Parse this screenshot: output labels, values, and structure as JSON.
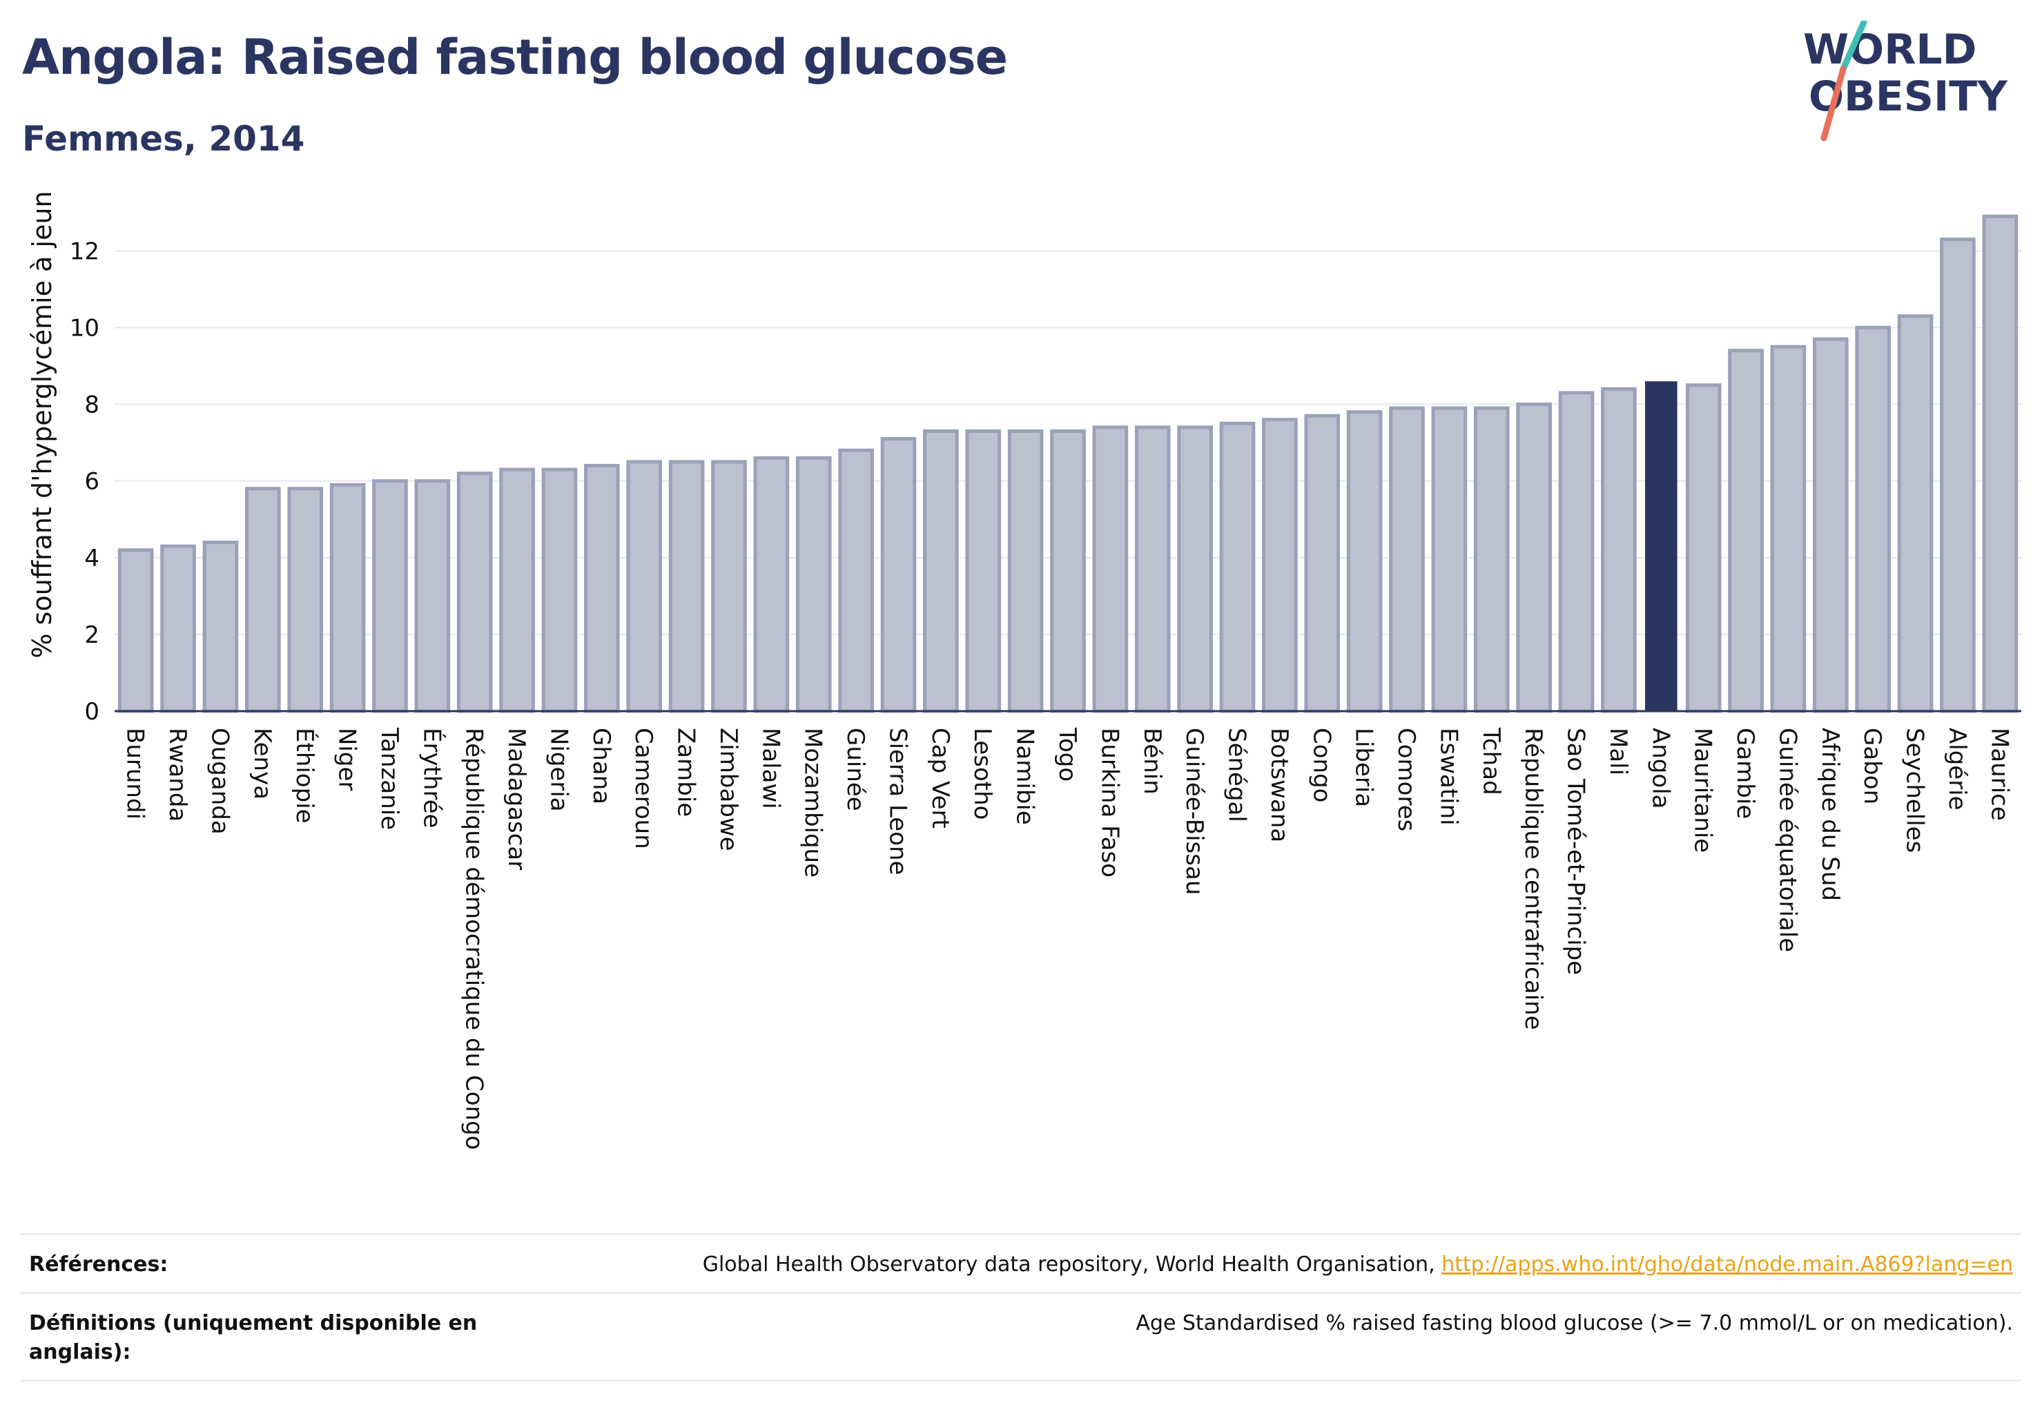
{
  "header": {
    "title": "Angola: Raised fasting blood glucose",
    "subtitle": "Femmes, 2014"
  },
  "logo": {
    "line1": "WORLD",
    "line2": "OBESITY",
    "colors": [
      "#2b3562",
      "#3fbfb6",
      "#e8705a"
    ]
  },
  "colors": {
    "bar": "#bcc1d0",
    "bar_border": "#9aa1b8",
    "highlight": "#2b3562",
    "grid": "#e6e8ef"
  },
  "chart_data": {
    "type": "bar",
    "ylabel": "% souffrant d'hyperglycémie à jeun",
    "ylim": [
      0,
      13.5
    ],
    "yticks": [
      0,
      2,
      4,
      6,
      8,
      10,
      12
    ],
    "grid": true,
    "highlight": "Angola",
    "categories": [
      "Burundi",
      "Rwanda",
      "Ouganda",
      "Kenya",
      "Éthiopie",
      "Niger",
      "Tanzanie",
      "Érythrée",
      "République démocratique du Congo",
      "Madagascar",
      "Nigeria",
      "Ghana",
      "Cameroun",
      "Zambie",
      "Zimbabwe",
      "Malawi",
      "Mozambique",
      "Guinée",
      "Sierra Leone",
      "Cap Vert",
      "Lesotho",
      "Namibie",
      "Togo",
      "Burkina Faso",
      "Bénin",
      "Guinée-Bissau",
      "Sénégal",
      "Botswana",
      "Congo",
      "Liberia",
      "Comores",
      "Eswatini",
      "Tchad",
      "République centrafricaine",
      "Sao Tomé-et-Principe",
      "Mali",
      "Angola",
      "Mauritanie",
      "Gambie",
      "Guinée équatoriale",
      "Afrique du Sud",
      "Gabon",
      "Seychelles",
      "Algérie",
      "Maurice"
    ],
    "values": [
      4.2,
      4.3,
      4.4,
      5.8,
      5.8,
      5.9,
      6.0,
      6.0,
      6.2,
      6.3,
      6.3,
      6.4,
      6.5,
      6.5,
      6.5,
      6.6,
      6.6,
      6.8,
      7.1,
      7.3,
      7.3,
      7.3,
      7.3,
      7.4,
      7.4,
      7.4,
      7.5,
      7.6,
      7.7,
      7.8,
      7.9,
      7.9,
      7.9,
      8.0,
      8.3,
      8.4,
      8.6,
      8.5,
      9.4,
      9.5,
      9.7,
      10.0,
      10.3,
      12.3,
      12.9
    ]
  },
  "footer": {
    "references_label": "Références:",
    "references_text": "Global Health Observatory data repository, World Health Organisation, ",
    "references_link": "http://apps.who.int/gho/data/node.main.A869?lang=en",
    "definitions_label": "Définitions (uniquement disponible en anglais):",
    "definitions_text": "Age Standardised % raised fasting blood glucose (>= 7.0 mmol/L or on medication)."
  }
}
